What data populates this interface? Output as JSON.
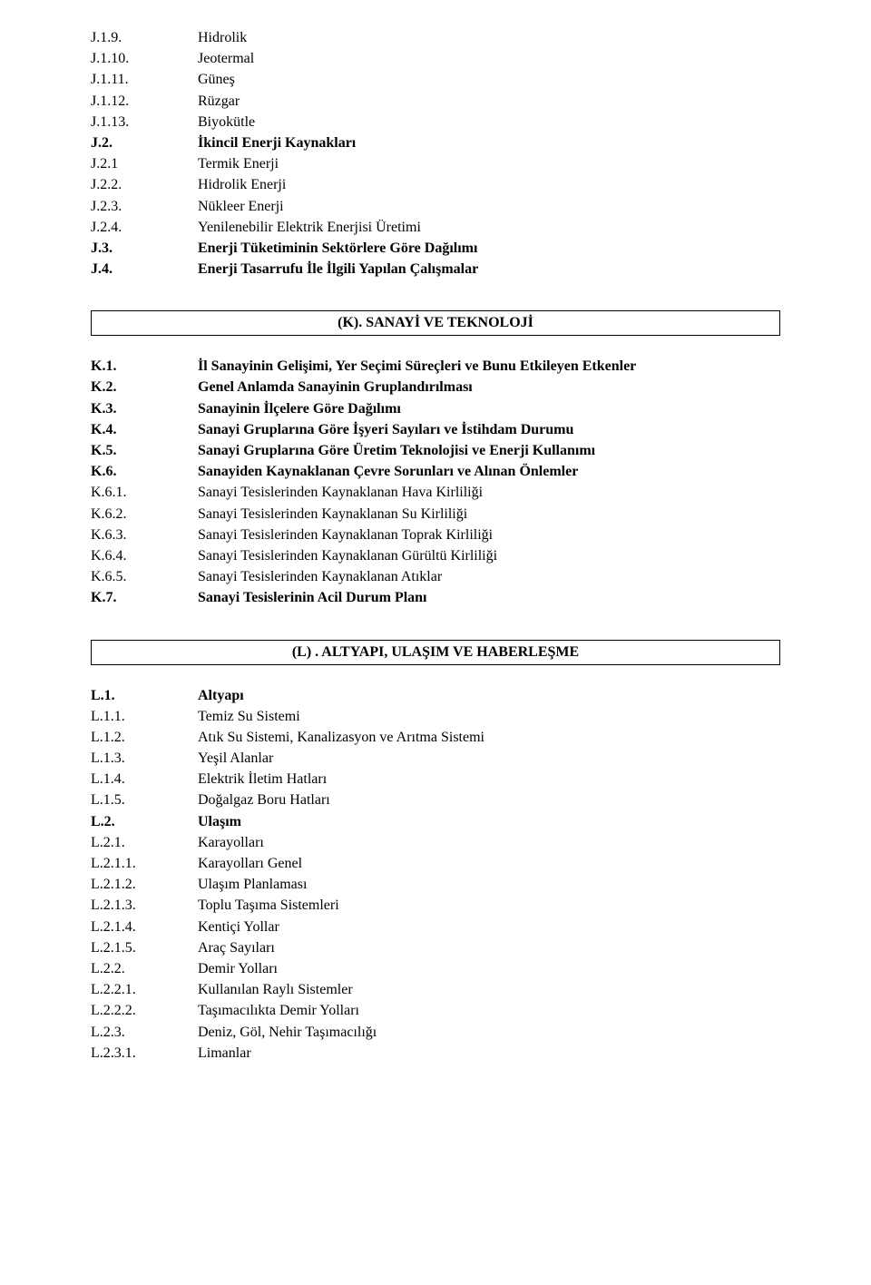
{
  "blockJ": [
    {
      "num": "J.1.9.",
      "text": "Hidrolik",
      "boldNum": false,
      "boldText": false
    },
    {
      "num": "J.1.10.",
      "text": "Jeotermal",
      "boldNum": false,
      "boldText": false
    },
    {
      "num": "J.1.11.",
      "text": "Güneş",
      "boldNum": false,
      "boldText": false
    },
    {
      "num": "J.1.12.",
      "text": "Rüzgar",
      "boldNum": false,
      "boldText": false
    },
    {
      "num": "J.1.13.",
      "text": "Biyokütle",
      "boldNum": false,
      "boldText": false
    },
    {
      "num": "J.2.",
      "text": "İkincil Enerji Kaynakları",
      "boldNum": true,
      "boldText": true
    },
    {
      "num": "J.2.1",
      "text": "Termik Enerji",
      "boldNum": false,
      "boldText": false
    },
    {
      "num": "J.2.2.",
      "text": "Hidrolik Enerji",
      "boldNum": false,
      "boldText": false
    },
    {
      "num": "J.2.3.",
      "text": "Nükleer Enerji",
      "boldNum": false,
      "boldText": false
    },
    {
      "num": "J.2.4.",
      "text": "Yenilenebilir Elektrik Enerjisi Üretimi",
      "boldNum": false,
      "boldText": false
    },
    {
      "num": "J.3.",
      "text": "Enerji Tüketiminin Sektörlere Göre Dağılımı",
      "boldNum": true,
      "boldText": true
    },
    {
      "num": "J.4.",
      "text": "Enerji Tasarrufu İle İlgili Yapılan Çalışmalar",
      "boldNum": true,
      "boldText": true
    }
  ],
  "headingK": "(K). SANAYİ VE TEKNOLOJİ",
  "blockK": [
    {
      "num": "K.1.",
      "text": "İl Sanayinin Gelişimi, Yer Seçimi Süreçleri ve Bunu Etkileyen Etkenler",
      "boldNum": true,
      "boldText": true
    },
    {
      "num": "K.2.",
      "text": "Genel Anlamda Sanayinin Gruplandırılması",
      "boldNum": true,
      "boldText": true
    },
    {
      "num": "K.3.",
      "text": "Sanayinin İlçelere Göre Dağılımı",
      "boldNum": true,
      "boldText": true
    },
    {
      "num": "K.4.",
      "text": "Sanayi Gruplarına Göre İşyeri Sayıları ve İstihdam Durumu",
      "boldNum": true,
      "boldText": true
    },
    {
      "num": "K.5.",
      "text": "Sanayi Gruplarına Göre Üretim Teknolojisi ve Enerji Kullanımı",
      "boldNum": true,
      "boldText": true
    },
    {
      "num": "K.6.",
      "text": "Sanayiden Kaynaklanan Çevre Sorunları ve Alınan Önlemler",
      "boldNum": true,
      "boldText": true
    },
    {
      "num": "K.6.1.",
      "text": "Sanayi Tesislerinden Kaynaklanan Hava Kirliliği",
      "boldNum": false,
      "boldText": false
    },
    {
      "num": "K.6.2.",
      "text": "Sanayi Tesislerinden Kaynaklanan Su Kirliliği",
      "boldNum": false,
      "boldText": false
    },
    {
      "num": "K.6.3.",
      "text": "Sanayi Tesislerinden Kaynaklanan Toprak Kirliliği",
      "boldNum": false,
      "boldText": false
    },
    {
      "num": "K.6.4.",
      "text": "Sanayi Tesislerinden Kaynaklanan Gürültü Kirliliği",
      "boldNum": false,
      "boldText": false
    },
    {
      "num": "K.6.5.",
      "text": "Sanayi Tesislerinden Kaynaklanan Atıklar",
      "boldNum": false,
      "boldText": false
    },
    {
      "num": "K.7.",
      "text": "Sanayi Tesislerinin Acil Durum Planı",
      "boldNum": true,
      "boldText": true
    }
  ],
  "headingL": "(L) . ALTYAPI, ULAŞIM VE HABERLEŞME",
  "blockL": [
    {
      "num": "L.1.",
      "text": "Altyapı",
      "boldNum": true,
      "boldText": true
    },
    {
      "num": "L.1.1.",
      "text": "Temiz Su Sistemi",
      "boldNum": false,
      "boldText": false
    },
    {
      "num": "L.1.2.",
      "text": "Atık Su Sistemi, Kanalizasyon ve Arıtma Sistemi",
      "boldNum": false,
      "boldText": false
    },
    {
      "num": "L.1.3.",
      "text": "Yeşil Alanlar",
      "boldNum": false,
      "boldText": false
    },
    {
      "num": "L.1.4.",
      "text": "Elektrik İletim Hatları",
      "boldNum": false,
      "boldText": false
    },
    {
      "num": "L.1.5.",
      "text": "Doğalgaz Boru Hatları",
      "boldNum": false,
      "boldText": false
    },
    {
      "num": "L.2.",
      "text": "Ulaşım",
      "boldNum": true,
      "boldText": true
    },
    {
      "num": "L.2.1.",
      "text": "Karayolları",
      "boldNum": false,
      "boldText": false
    },
    {
      "num": "L.2.1.1.",
      "text": "Karayolları Genel",
      "boldNum": false,
      "boldText": false
    },
    {
      "num": "L.2.1.2.",
      "text": "Ulaşım Planlaması",
      "boldNum": false,
      "boldText": false
    },
    {
      "num": "L.2.1.3.",
      "text": "Toplu Taşıma Sistemleri",
      "boldNum": false,
      "boldText": false
    },
    {
      "num": "L.2.1.4.",
      "text": "Kentiçi Yollar",
      "boldNum": false,
      "boldText": false
    },
    {
      "num": "L.2.1.5.",
      "text": "Araç Sayıları",
      "boldNum": false,
      "boldText": false
    },
    {
      "num": "L.2.2.",
      "text": "Demir Yolları",
      "boldNum": false,
      "boldText": false
    },
    {
      "num": "L.2.2.1.",
      "text": "Kullanılan Raylı Sistemler",
      "boldNum": false,
      "boldText": false
    },
    {
      "num": "L.2.2.2.",
      "text": "Taşımacılıkta Demir Yolları",
      "boldNum": false,
      "boldText": false
    },
    {
      "num": "L.2.3.",
      "text": "Deniz, Göl, Nehir Taşımacılığı",
      "boldNum": false,
      "boldText": false
    },
    {
      "num": "L.2.3.1.",
      "text": "Limanlar",
      "boldNum": false,
      "boldText": false
    }
  ]
}
